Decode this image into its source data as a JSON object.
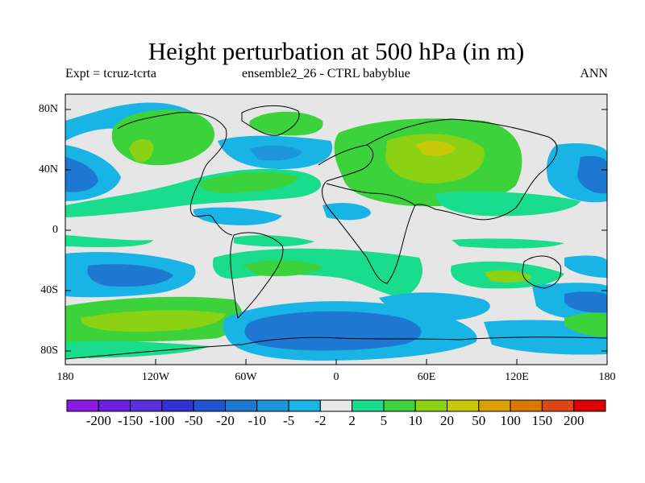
{
  "title": "Height perturbation at 500 hPa (in m)",
  "subtitle_left": "Expt = tcruz-tcrta",
  "subtitle_center": "ensemble2_26 - CTRL babyblue",
  "subtitle_right": "ANN",
  "lat_labels": [
    "80N",
    "40N",
    "0",
    "40S",
    "80S"
  ],
  "lon_labels": [
    "180",
    "120W",
    "60W",
    "0",
    "60E",
    "120E",
    "180"
  ],
  "colorbar": {
    "labels": [
      "-200",
      "-150",
      "-100",
      "-50",
      "-20",
      "-10",
      "-5",
      "-2",
      "2",
      "5",
      "10",
      "20",
      "50",
      "100",
      "150",
      "200"
    ],
    "colors": [
      "#8c19e1",
      "#6e1ee1",
      "#5a32dc",
      "#3232d2",
      "#1e55d2",
      "#1e78d2",
      "#1e96dc",
      "#19b4e6",
      "#e6e6e6",
      "#19dc8c",
      "#3cd23c",
      "#8cd214",
      "#c8c80a",
      "#dca000",
      "#dc7800",
      "#dc4614",
      "#dc0000"
    ]
  },
  "map_colors": {
    "neutral": "#e6e6e6",
    "coast": "#000000"
  }
}
